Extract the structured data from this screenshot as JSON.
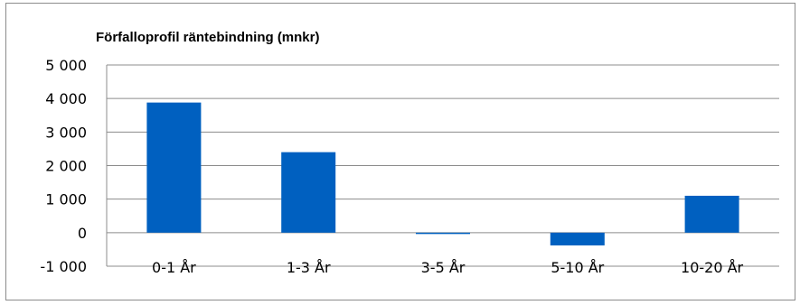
{
  "chart_data": {
    "type": "bar",
    "title": "Förfalloprofil räntebindning (mnkr)",
    "categories": [
      "0-1 År",
      "1-3 År",
      "3-5 År",
      "5-10 År",
      "10-20 År"
    ],
    "values": [
      3880,
      2400,
      -20,
      -380,
      1100
    ],
    "ylim": [
      -1000,
      5000
    ],
    "yticks": [
      5000,
      4000,
      3000,
      2000,
      1000,
      0,
      -1000
    ],
    "ytick_labels": [
      "5 000",
      "4 000",
      "3 000",
      "2 000",
      "1 000",
      "0",
      "-1 000"
    ],
    "grid": true,
    "legend": "none",
    "bar_color": "#0060C0",
    "grid_color": "#8C8C8C"
  }
}
